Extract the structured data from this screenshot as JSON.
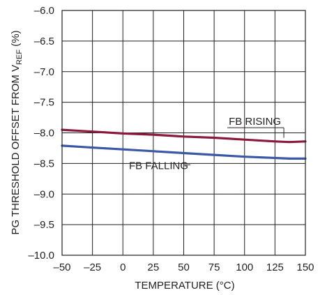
{
  "chart_data": {
    "type": "line",
    "xlabel": "TEMPERATURE (°C)",
    "ylabel_parts": [
      "PG THRESHOLD OFFSET FROM V",
      "REF",
      " (%)"
    ],
    "xlim": [
      -50,
      150
    ],
    "ylim": [
      -10.0,
      -6.0
    ],
    "x_ticks": [
      -50,
      -25,
      0,
      25,
      50,
      75,
      100,
      125,
      150
    ],
    "x_tick_labels": [
      "–50",
      "–25",
      "0",
      "25",
      "50",
      "75",
      "100",
      "125",
      "150"
    ],
    "y_ticks": [
      -10.0,
      -9.5,
      -9.0,
      -8.5,
      -8.0,
      -7.5,
      -7.0,
      -6.5,
      -6.0
    ],
    "y_tick_labels": [
      "–10.0",
      "–9.5",
      "–9.0",
      "–8.5",
      "–8.0",
      "–7.5",
      "–7.0",
      "–6.5",
      "–6.0"
    ],
    "grid": true,
    "series": [
      {
        "name": "FB RISING",
        "color": "#8b1a3a",
        "x": [
          -50,
          -25,
          0,
          25,
          50,
          75,
          100,
          125,
          137,
          150
        ],
        "y": [
          -7.95,
          -7.98,
          -8.01,
          -8.03,
          -8.06,
          -8.08,
          -8.11,
          -8.14,
          -8.15,
          -8.14
        ]
      },
      {
        "name": "FB FALLING",
        "color": "#3b58a8",
        "x": [
          -50,
          -25,
          0,
          25,
          50,
          75,
          100,
          125,
          137,
          150
        ],
        "y": [
          -8.21,
          -8.24,
          -8.27,
          -8.3,
          -8.33,
          -8.36,
          -8.39,
          -8.41,
          -8.42,
          -8.42
        ]
      }
    ],
    "annotations": [
      {
        "text": "FB RISING",
        "series": 0,
        "at_x": 62,
        "label_x": 87,
        "label_y": -7.87
      },
      {
        "text": "FB FALLING",
        "series": 1,
        "at_x": 50,
        "label_x": 5,
        "label_y": -8.59
      }
    ]
  }
}
